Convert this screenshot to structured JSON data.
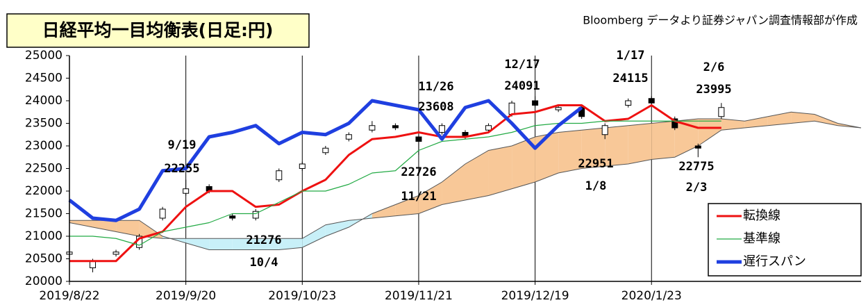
{
  "chart_data": {
    "type": "ichimoku",
    "title": "日経平均一目均衡表(日足:円)",
    "source": "Bloomberg データより証券ジャパン調査情報部が作成",
    "xlim": [
      0,
      136
    ],
    "xticks": [
      {
        "value": 0,
        "label": "2019/8/22"
      },
      {
        "value": 20,
        "label": "2019/9/20"
      },
      {
        "value": 40,
        "label": "2019/10/23"
      },
      {
        "value": 60,
        "label": "2019/11/21"
      },
      {
        "value": 80,
        "label": "2019/12/19"
      },
      {
        "value": 100,
        "label": "2020/1/23"
      }
    ],
    "ylim": [
      20000,
      25000
    ],
    "yticks": [
      20000,
      20500,
      21000,
      21500,
      22000,
      22500,
      23000,
      23500,
      24000,
      24500,
      25000
    ],
    "grid": "x",
    "legend": "bottom-right",
    "candles": {
      "up_color": "#ffffff",
      "down_color": "#000000",
      "x": [
        0,
        4,
        8,
        12,
        16,
        20,
        24,
        28,
        32,
        36,
        40,
        44,
        48,
        52,
        56,
        60,
        64,
        68,
        72,
        76,
        80,
        84,
        88,
        92,
        96,
        100,
        104,
        108,
        112
      ],
      "open": [
        20600,
        20300,
        20600,
        20750,
        21400,
        21950,
        22100,
        21450,
        21400,
        22250,
        22500,
        22850,
        23150,
        23350,
        23450,
        23200,
        23300,
        23300,
        23350,
        23700,
        24000,
        23800,
        23850,
        23250,
        23900,
        24050,
        23600,
        23000,
        23650
      ],
      "high": [
        20700,
        20500,
        20700,
        21050,
        21650,
        22250,
        22150,
        21500,
        21600,
        22500,
        22650,
        23000,
        23300,
        23550,
        23500,
        23250,
        23500,
        23350,
        23500,
        24000,
        24100,
        23900,
        23900,
        23500,
        24050,
        24100,
        23650,
        23050,
        23950
      ],
      "low": [
        20550,
        20200,
        20550,
        20700,
        21350,
        21900,
        21950,
        21350,
        21350,
        22200,
        22450,
        22800,
        23100,
        23300,
        23350,
        22800,
        23250,
        23150,
        23300,
        23650,
        23850,
        23750,
        23600,
        23150,
        23850,
        23900,
        23350,
        22750,
        23600
      ],
      "close": [
        20650,
        20450,
        20650,
        21000,
        21600,
        22050,
        22000,
        21400,
        21550,
        22450,
        22600,
        22950,
        23250,
        23450,
        23400,
        23100,
        23450,
        23200,
        23450,
        23950,
        23900,
        23850,
        23650,
        23450,
        24000,
        23950,
        23400,
        22950,
        23850
      ]
    },
    "cloud": {
      "up_color": "#f8c898",
      "down_color": "#c8f0f8",
      "x": [
        0,
        4,
        8,
        12,
        16,
        20,
        24,
        28,
        32,
        36,
        40,
        44,
        48,
        52,
        56,
        60,
        64,
        68,
        72,
        76,
        80,
        84,
        88,
        92,
        96,
        100,
        104,
        108,
        112,
        116,
        120,
        124,
        128,
        132,
        136
      ],
      "span1": [
        21300,
        21200,
        21100,
        21000,
        20950,
        20950,
        20950,
        20950,
        20950,
        20950,
        20950,
        21250,
        21350,
        21400,
        21450,
        21500,
        21700,
        21800,
        21900,
        22050,
        22200,
        22400,
        22500,
        22550,
        22600,
        22700,
        22750,
        23000,
        23350,
        23400,
        23450,
        23500,
        23550,
        23450,
        23400
      ],
      "span2": [
        21350,
        21350,
        21350,
        21350,
        21000,
        20850,
        20700,
        20700,
        20700,
        20700,
        20750,
        21000,
        21200,
        21500,
        21700,
        21900,
        22200,
        22600,
        22900,
        23000,
        23200,
        23300,
        23350,
        23400,
        23450,
        23500,
        23550,
        23600,
        23600,
        23550,
        23650,
        23750,
        23700,
        23500,
        23400
      ]
    },
    "series": [
      {
        "name": "転換線",
        "color": "#ee1111",
        "width": 3,
        "x": [
          0,
          4,
          8,
          12,
          16,
          20,
          24,
          28,
          32,
          36,
          40,
          44,
          48,
          52,
          56,
          60,
          64,
          68,
          72,
          76,
          80,
          84,
          88,
          92,
          96,
          100,
          104,
          108,
          112
        ],
        "values": [
          20450,
          20450,
          20450,
          20950,
          21100,
          21650,
          22000,
          22000,
          21650,
          21700,
          22000,
          22250,
          22800,
          23150,
          23200,
          23300,
          23200,
          23200,
          23300,
          23700,
          23750,
          23900,
          23900,
          23550,
          23600,
          23900,
          23550,
          23400,
          23400
        ]
      },
      {
        "name": "基準線",
        "color": "#22aa44",
        "width": 1.2,
        "x": [
          0,
          4,
          8,
          12,
          16,
          20,
          24,
          28,
          32,
          36,
          40,
          44,
          48,
          52,
          56,
          60,
          64,
          68,
          72,
          76,
          80,
          84,
          88,
          92,
          96,
          100,
          104,
          108,
          112
        ],
        "values": [
          21000,
          21000,
          20950,
          20800,
          21100,
          21200,
          21300,
          21500,
          21500,
          21750,
          22000,
          22000,
          22150,
          22400,
          22450,
          22900,
          23100,
          23150,
          23200,
          23300,
          23450,
          23500,
          23500,
          23550,
          23550,
          23550,
          23550,
          23550,
          23550
        ]
      },
      {
        "name": "遅行スパン",
        "color": "#1f3fe0",
        "width": 5,
        "x": [
          0,
          4,
          8,
          12,
          16,
          20,
          24,
          28,
          32,
          36,
          40,
          44,
          48,
          52,
          56,
          60,
          64,
          68,
          72,
          76,
          80,
          84,
          88
        ],
        "values": [
          21800,
          21400,
          21350,
          21600,
          22450,
          22500,
          23200,
          23300,
          23450,
          23050,
          23300,
          23250,
          23500,
          24000,
          23900,
          23800,
          23150,
          23850,
          24000,
          23500,
          22950,
          23450,
          23850
        ]
      }
    ],
    "annotations": [
      "9/19",
      "22255",
      "11/26",
      "23608",
      "12/17",
      "24091",
      "1/17",
      "24115",
      "2/6",
      "23995",
      "22726",
      "11/21",
      "22951",
      "1/8",
      "21276",
      "10/4",
      "22775",
      "2/3"
    ]
  }
}
